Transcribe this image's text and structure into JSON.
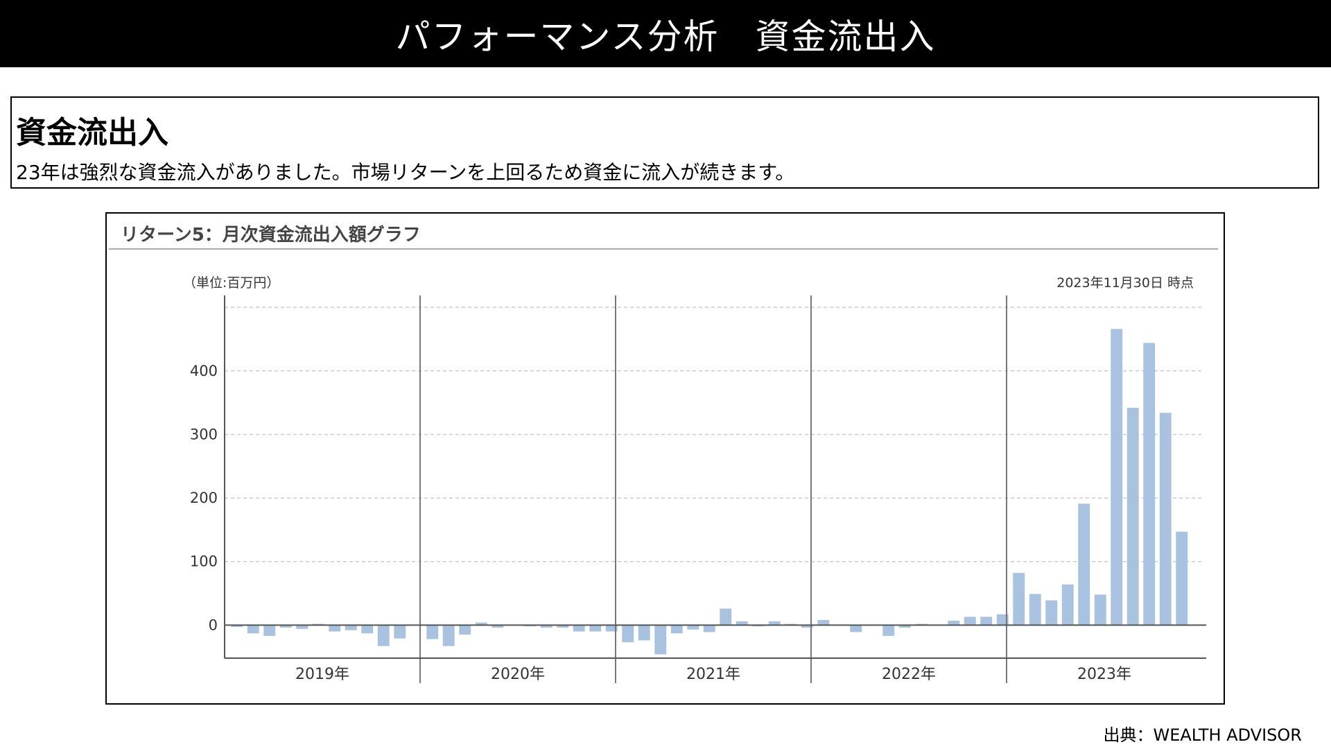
{
  "header": {
    "title": "パフォーマンス分析　資金流出入"
  },
  "summary": {
    "heading": "資金流出入",
    "text": "23年は強烈な資金流入がありました。市場リターンを上回るため資金に流入が続きます。"
  },
  "chart_panel": {
    "title": "リターン5：月次資金流出入額グラフ",
    "unit_label": "（単位:百万円）",
    "as_of_label": "2023年11月30日 時点"
  },
  "source": "出典：WEALTH ADVISOR",
  "colors": {
    "bar": "#a8c2df",
    "title_bar": "#000000",
    "grid": "#cccccc",
    "axis": "#555555"
  },
  "chart_data": {
    "type": "bar",
    "title": "リターン5：月次資金流出入額グラフ",
    "ylabel": "（単位:百万円）",
    "xlabel": "",
    "ylim": [
      -52,
      510
    ],
    "yticks": [
      0,
      100,
      200,
      300,
      400
    ],
    "grid": true,
    "groups": [
      {
        "label": "2019年",
        "values": [
          -3,
          -13,
          -17,
          -4,
          -6,
          2,
          -10,
          -8,
          -13,
          -33,
          -21
        ]
      },
      {
        "label": "2020年",
        "values": [
          -22,
          -33,
          -15,
          4,
          -4,
          0,
          -2,
          -4,
          -4,
          -10,
          -10,
          -10
        ]
      },
      {
        "label": "2021年",
        "values": [
          -27,
          -24,
          -46,
          -13,
          -7,
          -11,
          26,
          6,
          -2,
          6,
          2,
          -4
        ]
      },
      {
        "label": "2022年",
        "values": [
          8,
          0,
          -11,
          0,
          -17,
          -4,
          2,
          0,
          7,
          13,
          13,
          17
        ]
      },
      {
        "label": "2023年",
        "values": [
          82,
          49,
          39,
          64,
          191,
          48,
          466,
          342,
          444,
          334,
          147
        ]
      }
    ]
  }
}
